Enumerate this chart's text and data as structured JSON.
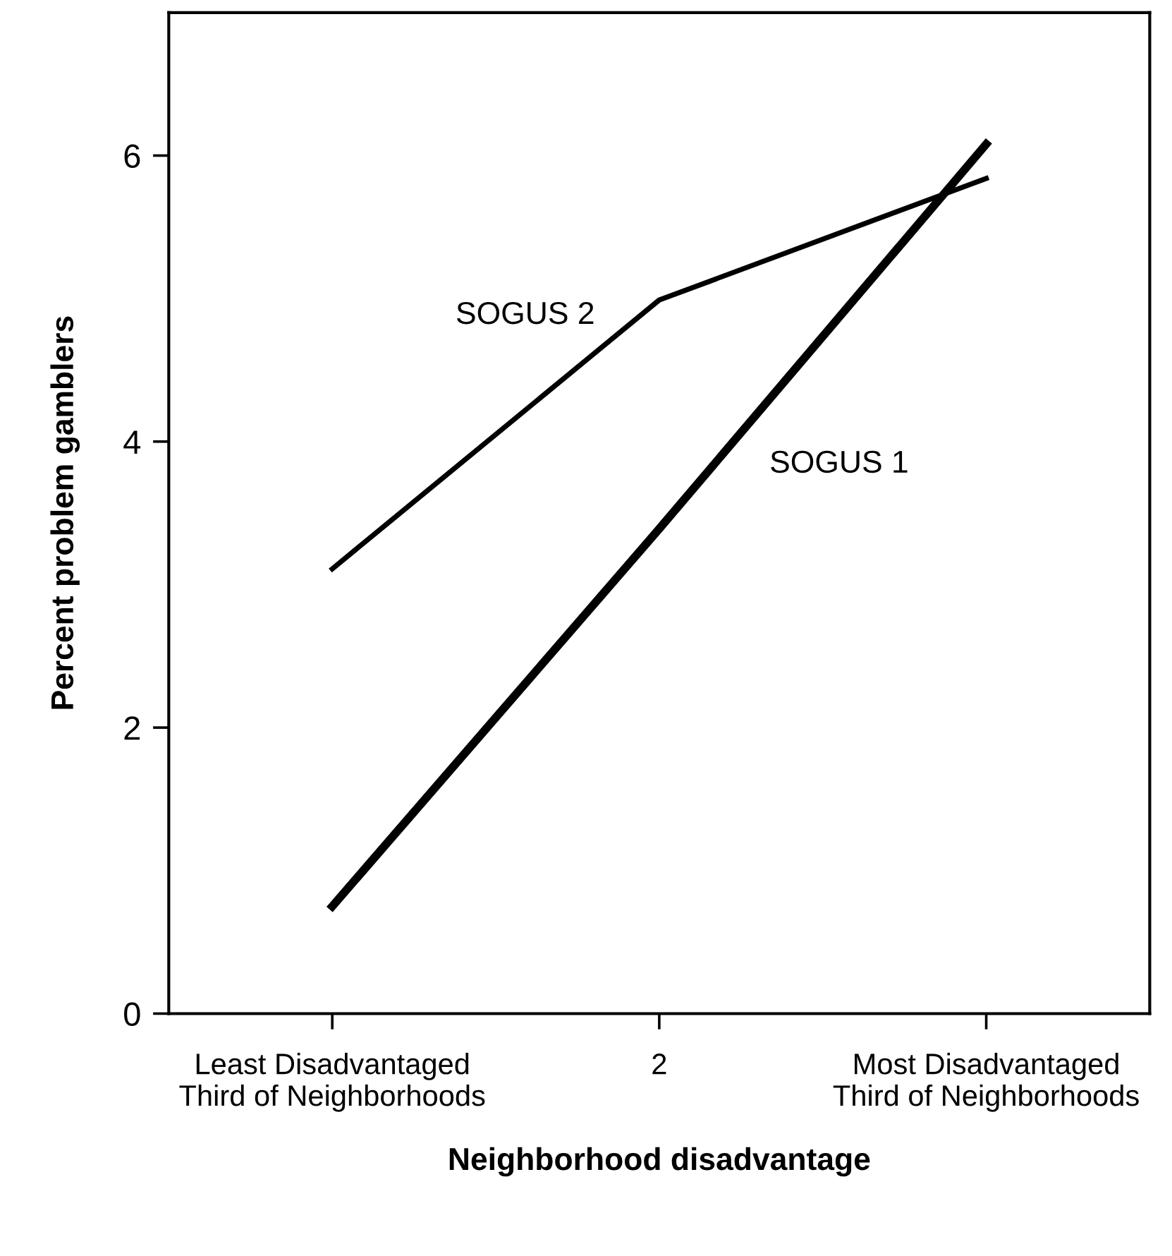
{
  "chart_data": {
    "type": "line",
    "xlabel": "Neighborhood disadvantage",
    "ylabel": "Percent problem gamblers",
    "categories": [
      "Least Disadvantaged\nThird of Neighborhoods",
      "2",
      "Most Disadvantaged\nThird of Neighborhoods"
    ],
    "series": [
      {
        "name": "SOGUS 1",
        "color": "#000000",
        "values": [
          0.75,
          3.39,
          6.08
        ]
      },
      {
        "name": "SOGUS 2",
        "color": "#000000",
        "values": [
          3.11,
          4.99,
          5.84
        ]
      }
    ],
    "ylim": [
      0,
      7
    ],
    "yticks": [
      0,
      2,
      4,
      6
    ],
    "grid": false,
    "legend": false,
    "marker": "none",
    "line_style": "solid"
  }
}
